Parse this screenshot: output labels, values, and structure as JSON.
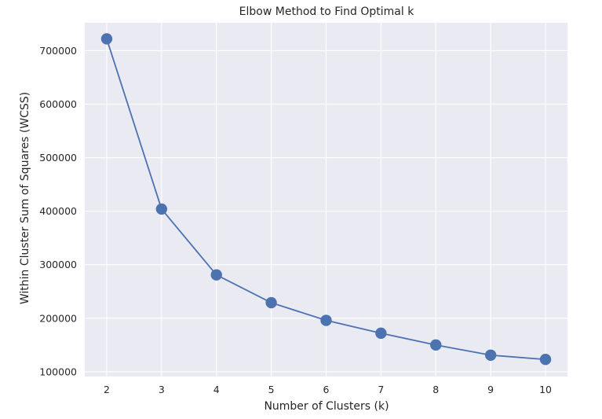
{
  "chart_data": {
    "type": "line",
    "title": "Elbow Method to Find Optimal k",
    "xlabel": "Number of Clusters (k)",
    "ylabel": "Within Cluster Sum of Squares (WCSS)",
    "x": [
      2,
      3,
      4,
      5,
      6,
      7,
      8,
      9,
      10
    ],
    "series": [
      {
        "values": [
          722000,
          404000,
          281000,
          229000,
          196000,
          172000,
          150000,
          131000,
          123000
        ]
      }
    ],
    "xlim": [
      1.6,
      10.4
    ],
    "ylim": [
      91000,
      752000
    ],
    "xticks": [
      2,
      3,
      4,
      5,
      6,
      7,
      8,
      9,
      10
    ],
    "yticks": [
      100000,
      200000,
      300000,
      400000,
      500000,
      600000,
      700000
    ],
    "grid": true,
    "markers": true,
    "colors": {
      "line": "#4c72b0",
      "background": "#eaeaf2",
      "grid": "#ffffff"
    }
  }
}
